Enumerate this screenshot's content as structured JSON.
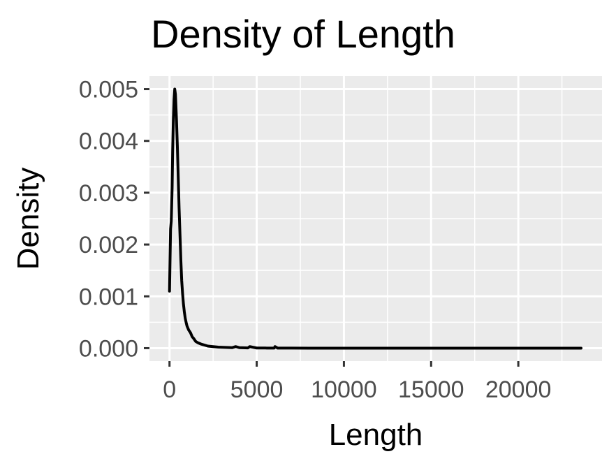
{
  "chart_data": {
    "type": "line",
    "title": "Density of Length",
    "xlabel": "Length",
    "ylabel": "Density",
    "xlim": [
      -1150,
      24800
    ],
    "ylim": [
      -0.00025,
      0.00525
    ],
    "x_ticks": [
      0,
      5000,
      10000,
      15000,
      20000
    ],
    "x_tick_labels": [
      "0",
      "5000",
      "10000",
      "15000",
      "20000"
    ],
    "y_ticks": [
      0,
      0.001,
      0.002,
      0.003,
      0.004,
      0.005
    ],
    "y_tick_labels": [
      "0.000",
      "0.001",
      "0.002",
      "0.003",
      "0.004",
      "0.005"
    ],
    "grid": true,
    "panel_background": "#ebebeb",
    "grid_color": "#ffffff",
    "line_color": "#000000",
    "series": [
      {
        "x": [
          0,
          60,
          100,
          150,
          180,
          220,
          260,
          300,
          340,
          400,
          450,
          500,
          550,
          600,
          650,
          700,
          750,
          800,
          850,
          900,
          950,
          1000,
          1100,
          1200,
          1300,
          1400,
          1500,
          1650,
          1800,
          2000,
          2200,
          2500,
          2800,
          3200,
          3600,
          3800,
          4000,
          4500,
          4600,
          5000,
          5500,
          6000,
          6050,
          6200,
          7000,
          8000,
          10000,
          12000,
          14000,
          16000,
          18000,
          20000,
          22000,
          23600
        ],
        "y": [
          0.0011,
          0.0023,
          0.00245,
          0.0031,
          0.0038,
          0.0044,
          0.0048,
          0.005,
          0.0049,
          0.0044,
          0.0039,
          0.0033,
          0.0027,
          0.0022,
          0.0017,
          0.0013,
          0.00105,
          0.00085,
          0.0007,
          0.00058,
          0.0005,
          0.00043,
          0.00035,
          0.0003,
          0.00022,
          0.00018,
          0.00013,
          0.0001,
          8e-05,
          6e-05,
          4e-05,
          3e-05,
          2e-05,
          1.5e-05,
          1e-05,
          3e-05,
          1e-05,
          5e-06,
          3e-05,
          3e-06,
          2e-06,
          1e-06,
          3e-05,
          1e-06,
          5e-07,
          0,
          0,
          0,
          0,
          0,
          0,
          0,
          0,
          0
        ]
      }
    ]
  }
}
